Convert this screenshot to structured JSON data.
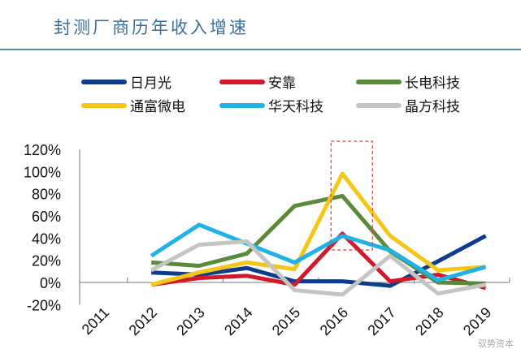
{
  "title": "封测厂商历年收入增速",
  "watermark": "驭势资本",
  "chart_data": {
    "type": "line",
    "title": "封测厂商历年收入增速",
    "categories": [
      "2011",
      "2012",
      "2013",
      "2014",
      "2015",
      "2016",
      "2017",
      "2018",
      "2019"
    ],
    "yticks": [
      "-20%",
      "0%",
      "20%",
      "40%",
      "60%",
      "80%",
      "100%",
      "120%"
    ],
    "ylim": [
      -20,
      120
    ],
    "legend": "top",
    "grid": false,
    "highlight": "2016",
    "series": [
      {
        "name": "日月光",
        "color": "#0d3c8c",
        "values": [
          null,
          9,
          7,
          13,
          1,
          1,
          -3,
          19,
          42
        ]
      },
      {
        "name": "安靠",
        "color": "#d0192b",
        "values": [
          null,
          -2,
          4,
          6,
          -2,
          44,
          1,
          7,
          -5
        ]
      },
      {
        "name": "长电科技",
        "color": "#5a8a3a",
        "values": [
          null,
          18,
          15,
          26,
          69,
          78,
          28,
          0,
          -1
        ]
      },
      {
        "name": "通富微电",
        "color": "#f5c518",
        "values": [
          null,
          -2,
          9,
          18,
          12,
          98,
          42,
          11,
          14
        ]
      },
      {
        "name": "华天科技",
        "color": "#1fb2e3",
        "values": [
          null,
          24,
          52,
          35,
          18,
          42,
          29,
          2,
          14
        ]
      },
      {
        "name": "晶方科技",
        "color": "#c4c4c4",
        "values": [
          null,
          11,
          34,
          37,
          -7,
          -11,
          24,
          -10,
          -2
        ]
      }
    ]
  }
}
